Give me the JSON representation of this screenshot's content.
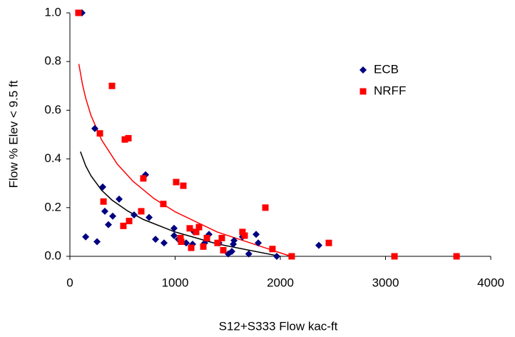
{
  "chart_data": {
    "type": "scatter",
    "x_label": "S12+S333 Flow  kac-ft",
    "y_label": "Flow % Elev < 9.5 ft",
    "xlim": [
      0,
      4000
    ],
    "xticks": [
      0,
      1000,
      2000,
      3000,
      4000
    ],
    "ylim": [
      0,
      1
    ],
    "yticks": [
      {
        "value": 0,
        "label": "0.0"
      },
      {
        "value": 0.2,
        "label": "0.2"
      },
      {
        "value": 0.4,
        "label": "0.4"
      },
      {
        "value": 0.6,
        "label": "0.6"
      },
      {
        "value": 0.8,
        "label": "0.8"
      },
      {
        "value": 1,
        "label": "1.0"
      }
    ],
    "grid": false,
    "legend": "upper-right",
    "series": [
      {
        "name": "ECB",
        "color": "#000080",
        "marker": "diamond",
        "x": [
          115,
          237,
          150,
          258,
          312,
          332,
          366,
          407,
          468,
          610,
          719,
          753,
          814,
          895,
          990,
          990,
          1030,
          1105,
          1166,
          1180,
          1281,
          1322,
          1417,
          1505,
          1539,
          1553,
          1560,
          1640,
          1700,
          1770,
          1790,
          1966,
          2366
        ],
        "values": [
          1.0,
          0.525,
          0.08,
          0.06,
          0.285,
          0.185,
          0.13,
          0.165,
          0.235,
          0.17,
          0.335,
          0.16,
          0.07,
          0.055,
          0.115,
          0.085,
          0.07,
          0.055,
          0.05,
          0.1,
          0.055,
          0.09,
          0.055,
          0.01,
          0.02,
          0.05,
          0.065,
          0.08,
          0.01,
          0.09,
          0.055,
          0.0,
          0.045
        ],
        "trend": {
          "color": "#000000",
          "x": [
            100,
            150,
            200,
            300,
            400,
            550,
            700,
            1000,
            1400,
            2000
          ],
          "values": [
            0.43,
            0.372,
            0.331,
            0.272,
            0.231,
            0.186,
            0.151,
            0.1,
            0.051,
            0.0
          ]
        }
      },
      {
        "name": "NRFF",
        "color": "#ff0000",
        "marker": "square",
        "x": [
          81,
          400,
          285,
          319,
          522,
          556,
          698,
          508,
          563,
          678,
          888,
          1010,
          1078,
          1051,
          1058,
          1139,
          1200,
          1227,
          1153,
          1268,
          1302,
          1403,
          1444,
          1458,
          1640,
          1661,
          1858,
          1925,
          2108,
          2461,
          3085,
          3675
        ],
        "values": [
          1.0,
          0.7,
          0.505,
          0.225,
          0.48,
          0.485,
          0.32,
          0.125,
          0.145,
          0.185,
          0.215,
          0.305,
          0.29,
          0.075,
          0.06,
          0.115,
          0.1,
          0.12,
          0.035,
          0.04,
          0.075,
          0.055,
          0.075,
          0.025,
          0.1,
          0.085,
          0.2,
          0.03,
          0.0,
          0.055,
          0.0,
          0.0
        ],
        "trend": {
          "color": "#ff0000",
          "x": [
            85,
            120,
            150,
            200,
            300,
            450,
            600,
            800,
            1000,
            1400,
            2100
          ],
          "values": [
            0.79,
            0.705,
            0.65,
            0.579,
            0.479,
            0.379,
            0.308,
            0.237,
            0.183,
            0.1,
            0.0
          ]
        }
      }
    ]
  }
}
